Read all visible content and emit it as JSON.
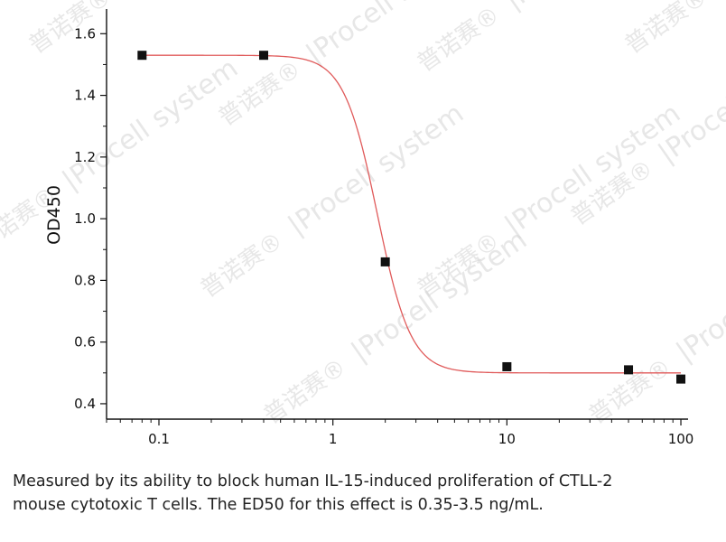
{
  "chart_data": {
    "type": "scatter",
    "title": "",
    "xlabel": "",
    "ylabel": "OD450",
    "x_scale": "log",
    "xlim": [
      0.05,
      110
    ],
    "ylim": [
      0.35,
      1.68
    ],
    "x_ticks": [
      0.1,
      1,
      10,
      100
    ],
    "x_tick_labels": [
      "0.1",
      "1",
      "10",
      "100"
    ],
    "y_ticks": [
      0.4,
      0.6,
      0.8,
      1.0,
      1.2,
      1.4,
      1.6
    ],
    "y_tick_labels": [
      "0.4",
      "0.6",
      "0.8",
      "1.0",
      "1.2",
      "1.4",
      "1.6"
    ],
    "series": [
      {
        "x": [
          0.08,
          0.4,
          2,
          10,
          50,
          100
        ],
        "y": [
          1.53,
          1.53,
          0.86,
          0.52,
          0.51,
          0.48
        ],
        "marker": "square",
        "color": "#111111"
      }
    ],
    "fit_curve": {
      "model": "4PL",
      "top": 1.53,
      "bottom": 0.5,
      "ec50": 1.8,
      "hill": 4.5,
      "color": "#e05a5a"
    },
    "grid": false,
    "legend": "none"
  },
  "caption": {
    "line1": "Measured by its ability to block human IL-15-induced proliferation of CTLL-2",
    "line2": "mouse cytotoxic T cells. The ED50 for this effect is 0.35-3.5 ng/mL."
  },
  "watermark": {
    "brand": "Procell",
    "brand_small": "system",
    "cn": "普诺赛®"
  }
}
